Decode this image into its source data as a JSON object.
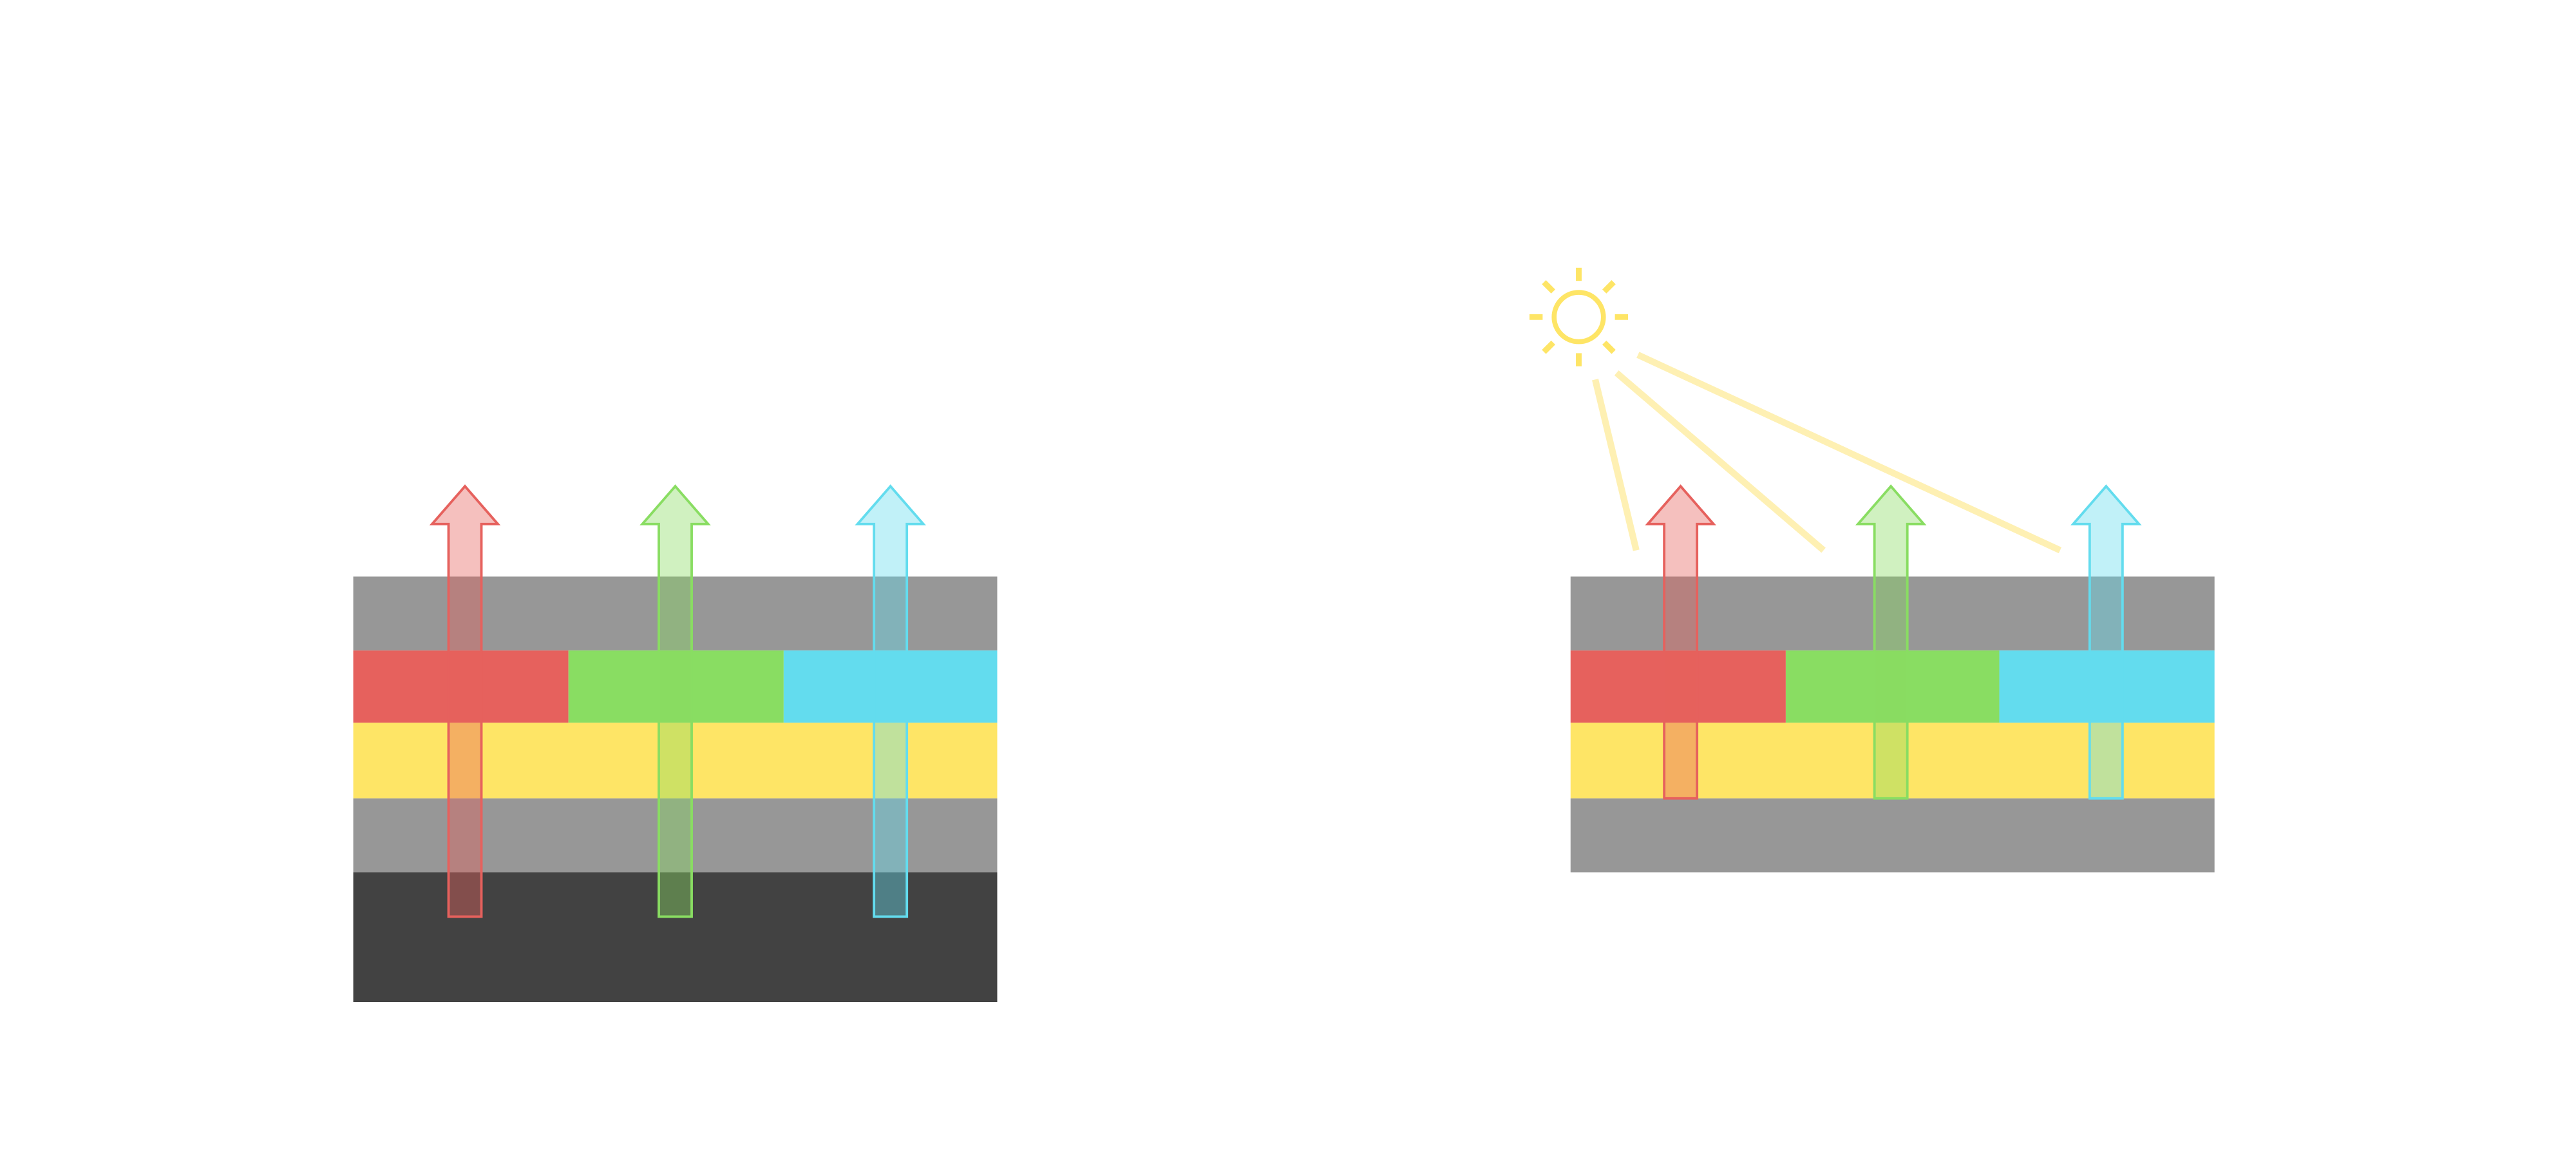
{
  "colors": {
    "background": "#ffffff",
    "gray_layer": "#979797",
    "dark_layer": "#424242",
    "yellow_layer": "#fee566",
    "red": "#e6615d",
    "green": "#89dd62",
    "cyan": "#63dcee",
    "sun": "#fee566",
    "sun_beam": "#fef0b3"
  },
  "diagrams": [
    {
      "layers": [
        "gray",
        "red-green-cyan",
        "yellow",
        "gray",
        "dark"
      ],
      "light_source": "emitted-arrows"
    },
    {
      "layers": [
        "gray",
        "red-green-cyan",
        "yellow",
        "gray"
      ],
      "light_source": "sun-icon"
    }
  ],
  "icons": [
    "up-arrow-icon",
    "sun-icon"
  ]
}
